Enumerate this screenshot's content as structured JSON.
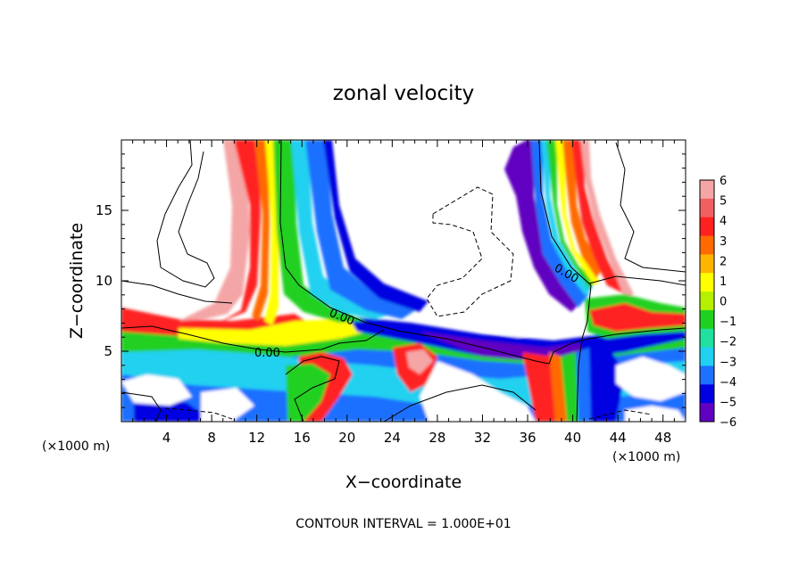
{
  "chart_data": {
    "type": "heatmap",
    "title": "zonal velocity",
    "xlabel": "X−coordinate",
    "ylabel": "Z−coordinate",
    "x_unit_left": "(×1000 m)",
    "x_unit_right": "(×1000 m)",
    "footer": "CONTOUR INTERVAL = 1.000E+01",
    "xlim": [
      0,
      50
    ],
    "ylim": [
      0,
      20
    ],
    "x_ticks": [
      "4",
      "8",
      "12",
      "16",
      "20",
      "24",
      "28",
      "32",
      "36",
      "40",
      "44",
      "48"
    ],
    "y_ticks": [
      "5",
      "10",
      "15"
    ],
    "colorbar": {
      "labels": [
        "6",
        "5",
        "4",
        "3",
        "2",
        "1",
        "0",
        "−1",
        "−2",
        "−3",
        "−4",
        "−5",
        "−6"
      ],
      "colors": [
        "#f4a6a6",
        "#f06060",
        "#ff2020",
        "#ff6a00",
        "#ffb400",
        "#ffff00",
        "#b4f000",
        "#20d020",
        "#20e0a0",
        "#20d0f0",
        "#1e70ff",
        "#0000e0",
        "#6000c0"
      ]
    },
    "contour_labels": [
      "0.00",
      "0.00",
      "0.00"
    ]
  }
}
